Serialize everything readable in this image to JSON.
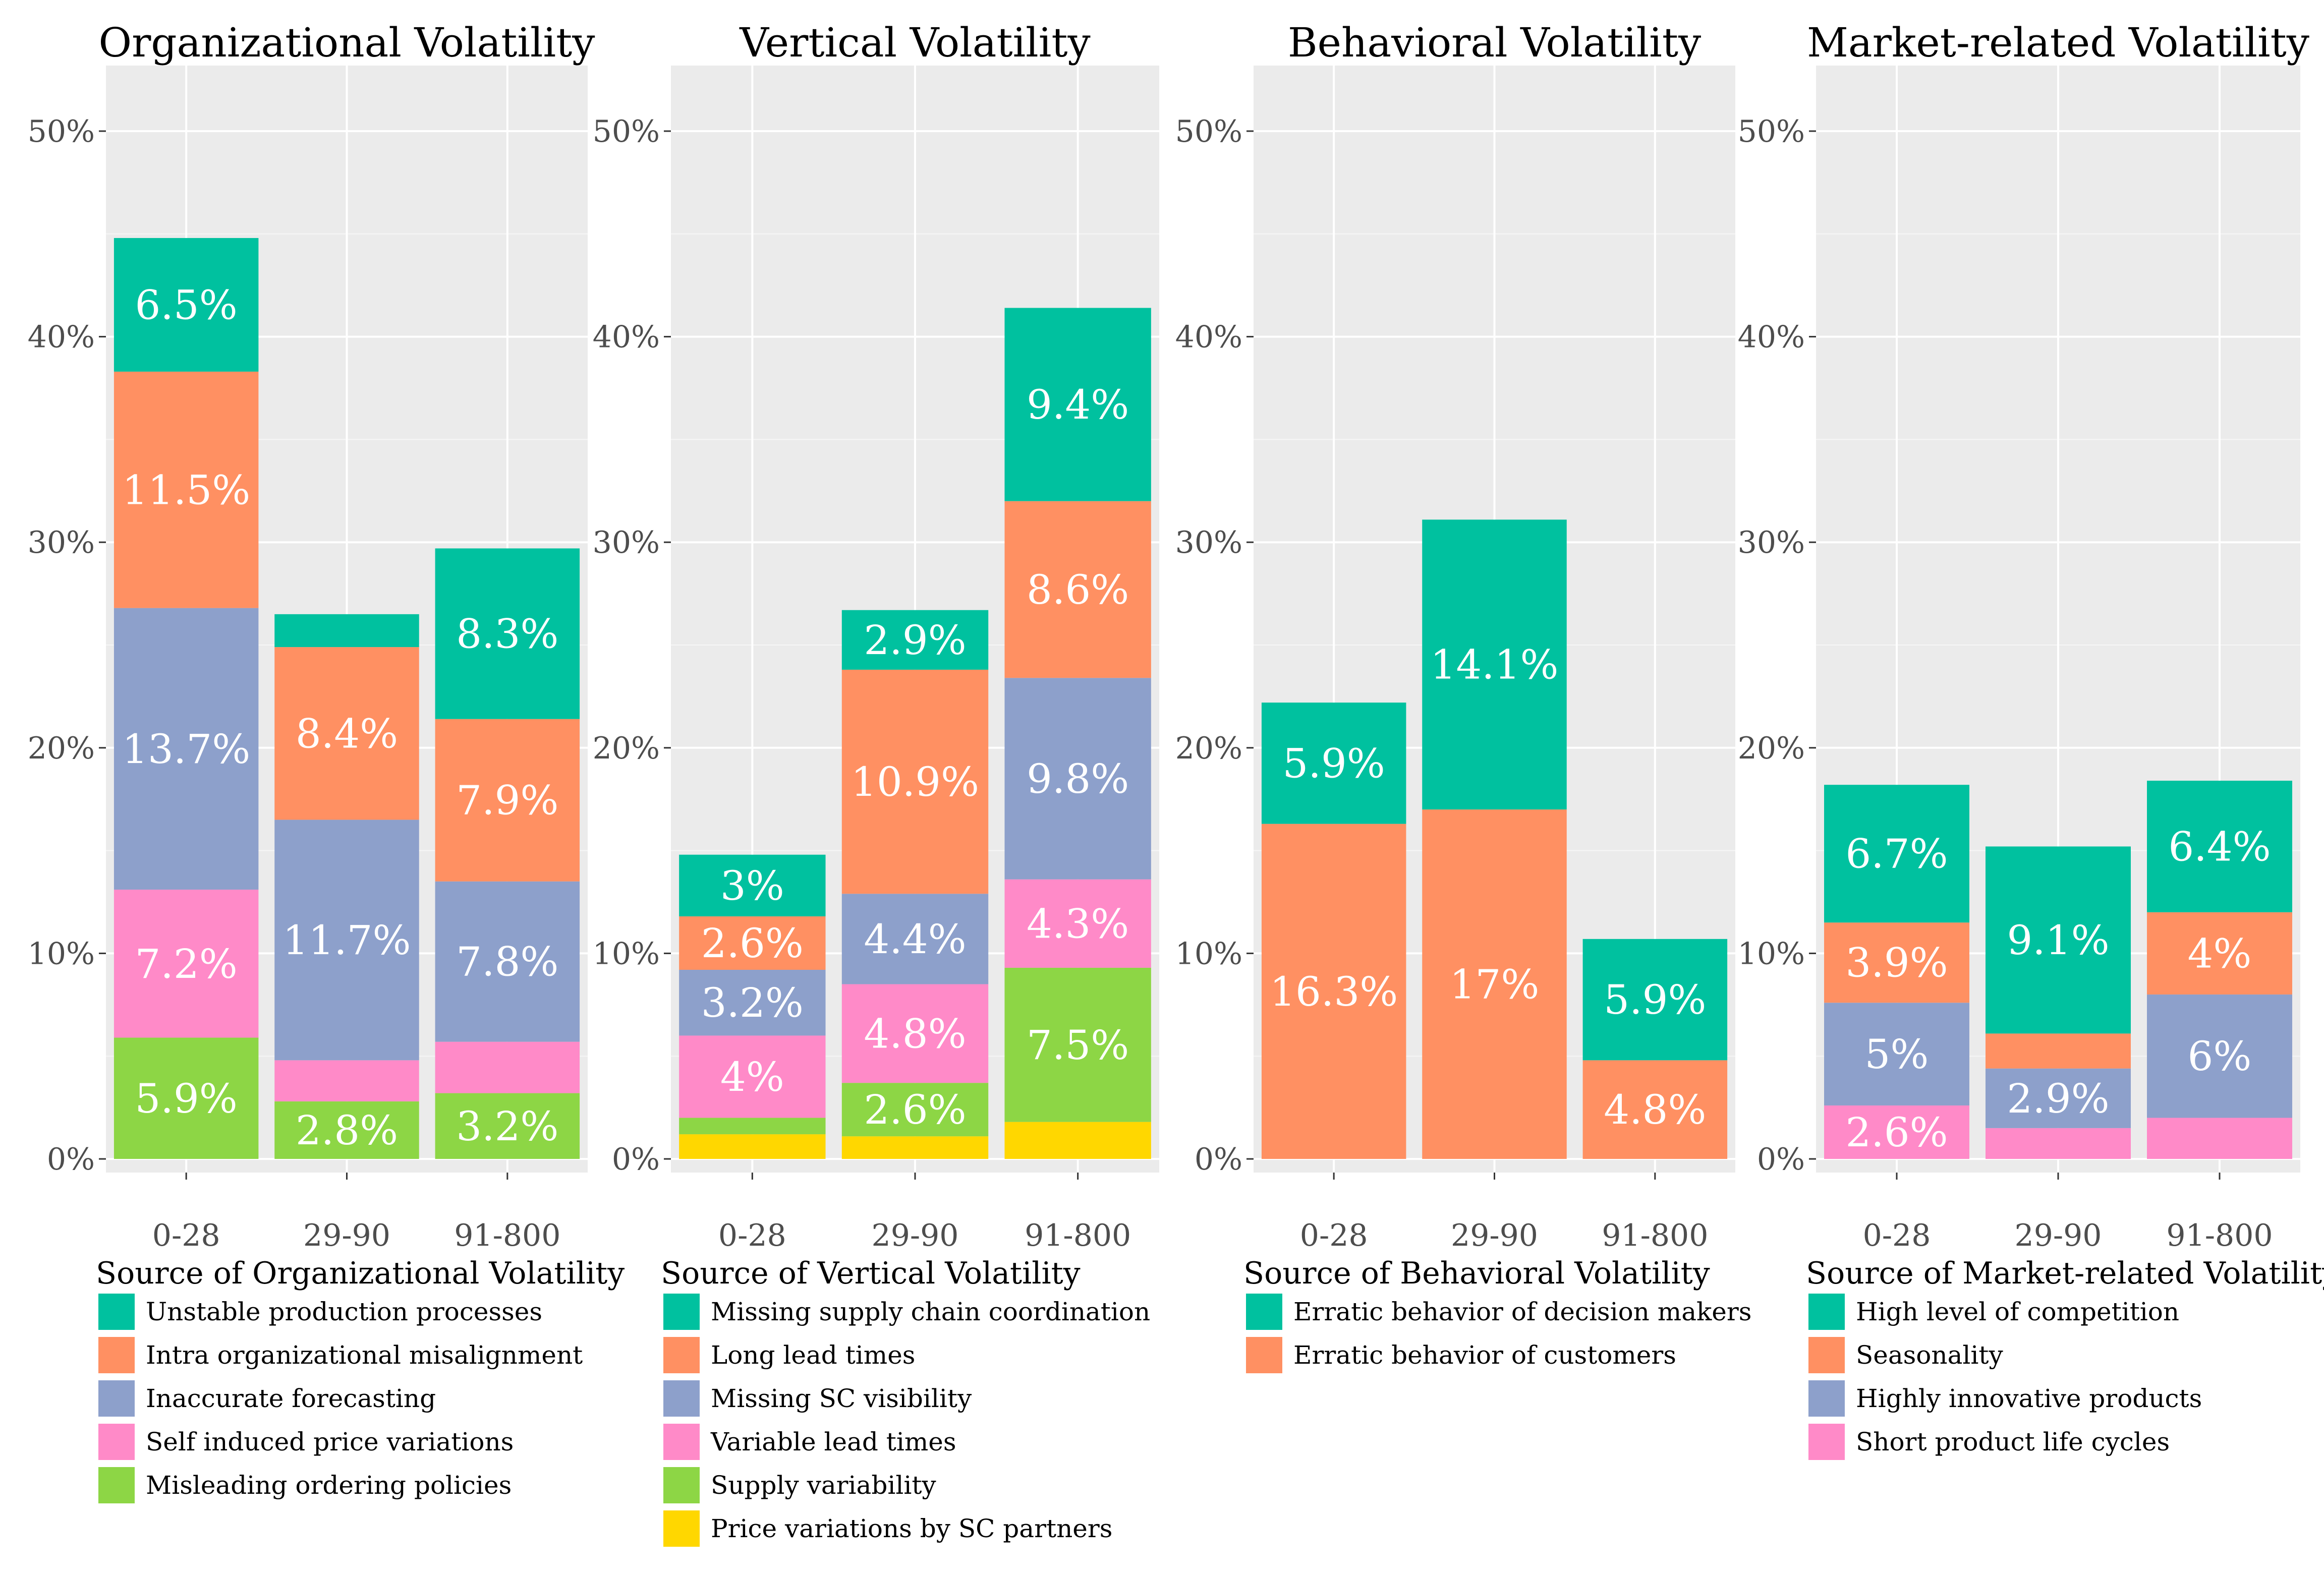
{
  "colors": {
    "panel_bg": "#EBEBEB",
    "grid_major": "#FFFFFF",
    "teal": "#00C19F",
    "orange": "#FF9062",
    "blue": "#8DA0CB",
    "pink": "#FF8AC8",
    "green": "#8DD645",
    "yellow": "#FFD700"
  },
  "chart_data": [
    {
      "type": "bar",
      "stacked": true,
      "title": "Organizational Volatility",
      "categories": [
        "0-28",
        "29-90",
        "91-800"
      ],
      "ylim": [
        0,
        50
      ],
      "yticks": [
        "0%",
        "10%",
        "20%",
        "30%",
        "40%",
        "50%"
      ],
      "legend_title": "Source of Organizational Volatility",
      "series": [
        {
          "name": "Misleading ordering policies",
          "color": "#8DD645",
          "values": [
            5.9,
            2.8,
            3.2
          ],
          "labels": [
            "5.9%",
            "2.8%",
            "3.2%"
          ]
        },
        {
          "name": "Self induced price variations",
          "color": "#FF8AC8",
          "values": [
            7.2,
            2.0,
            2.5
          ],
          "labels": [
            "7.2%",
            "",
            ""
          ]
        },
        {
          "name": "Inaccurate forecasting",
          "color": "#8DA0CB",
          "values": [
            13.7,
            11.7,
            7.8
          ],
          "labels": [
            "13.7%",
            "11.7%",
            "7.8%"
          ]
        },
        {
          "name": "Intra organizational misalignment",
          "color": "#FF9062",
          "values": [
            11.5,
            8.4,
            7.9
          ],
          "labels": [
            "11.5%",
            "8.4%",
            "7.9%"
          ]
        },
        {
          "name": "Unstable production processes",
          "color": "#00C19F",
          "values": [
            6.5,
            1.6,
            8.3
          ],
          "labels": [
            "6.5%",
            "",
            "8.3%"
          ]
        }
      ]
    },
    {
      "type": "bar",
      "stacked": true,
      "title": "Vertical Volatility",
      "categories": [
        "0-28",
        "29-90",
        "91-800"
      ],
      "ylim": [
        0,
        50
      ],
      "yticks": [
        "0%",
        "10%",
        "20%",
        "30%",
        "40%",
        "50%"
      ],
      "legend_title": "Source of Vertical Volatility",
      "series": [
        {
          "name": "Price variations  by SC partners",
          "color": "#FFD700",
          "values": [
            1.2,
            1.1,
            1.8
          ],
          "labels": [
            "",
            "",
            ""
          ]
        },
        {
          "name": "Supply variability",
          "color": "#8DD645",
          "values": [
            0.8,
            2.6,
            7.5
          ],
          "labels": [
            "",
            "2.6%",
            "7.5%"
          ]
        },
        {
          "name": "Variable lead times",
          "color": "#FF8AC8",
          "values": [
            4.0,
            4.8,
            4.3
          ],
          "labels": [
            "4%",
            "4.8%",
            "4.3%"
          ]
        },
        {
          "name": "Missing SC visibility",
          "color": "#8DA0CB",
          "values": [
            3.2,
            4.4,
            9.8
          ],
          "labels": [
            "3.2%",
            "4.4%",
            "9.8%"
          ]
        },
        {
          "name": "Long lead times",
          "color": "#FF9062",
          "values": [
            2.6,
            10.9,
            8.6
          ],
          "labels": [
            "2.6%",
            "10.9%",
            "8.6%"
          ]
        },
        {
          "name": "Missing supply chain coordination",
          "color": "#00C19F",
          "values": [
            3.0,
            2.9,
            9.4
          ],
          "labels": [
            "3%",
            "2.9%",
            "9.4%"
          ]
        }
      ]
    },
    {
      "type": "bar",
      "stacked": true,
      "title": "Behavioral Volatility",
      "categories": [
        "0-28",
        "29-90",
        "91-800"
      ],
      "ylim": [
        0,
        50
      ],
      "yticks": [
        "0%",
        "10%",
        "20%",
        "30%",
        "40%",
        "50%"
      ],
      "legend_title": "Source of Behavioral Volatility",
      "series": [
        {
          "name": "Erratic behavior of customers",
          "color": "#FF9062",
          "values": [
            16.3,
            17.0,
            4.8
          ],
          "labels": [
            "16.3%",
            "17%",
            "4.8%"
          ]
        },
        {
          "name": "Erratic behavior of decision makers",
          "color": "#00C19F",
          "values": [
            5.9,
            14.1,
            5.9
          ],
          "labels": [
            "5.9%",
            "14.1%",
            "5.9%"
          ]
        }
      ]
    },
    {
      "type": "bar",
      "stacked": true,
      "title": "Market-related Volatility",
      "categories": [
        "0-28",
        "29-90",
        "91-800"
      ],
      "ylim": [
        0,
        50
      ],
      "yticks": [
        "0%",
        "10%",
        "20%",
        "30%",
        "40%",
        "50%"
      ],
      "legend_title": "Source of Market-related Volatility",
      "series": [
        {
          "name": "Short product life cycles",
          "color": "#FF8AC8",
          "values": [
            2.6,
            1.5,
            2.0
          ],
          "labels": [
            "2.6%",
            "",
            ""
          ]
        },
        {
          "name": "Highly innovative products",
          "color": "#8DA0CB",
          "values": [
            5.0,
            2.9,
            6.0
          ],
          "labels": [
            "5%",
            "2.9%",
            "6%"
          ]
        },
        {
          "name": "Seasonality",
          "color": "#FF9062",
          "values": [
            3.9,
            1.7,
            4.0
          ],
          "labels": [
            "3.9%",
            "",
            "4%"
          ]
        },
        {
          "name": "High level of competition",
          "color": "#00C19F",
          "values": [
            6.7,
            9.1,
            6.4
          ],
          "labels": [
            "6.7%",
            "9.1%",
            "6.4%"
          ]
        }
      ]
    }
  ]
}
